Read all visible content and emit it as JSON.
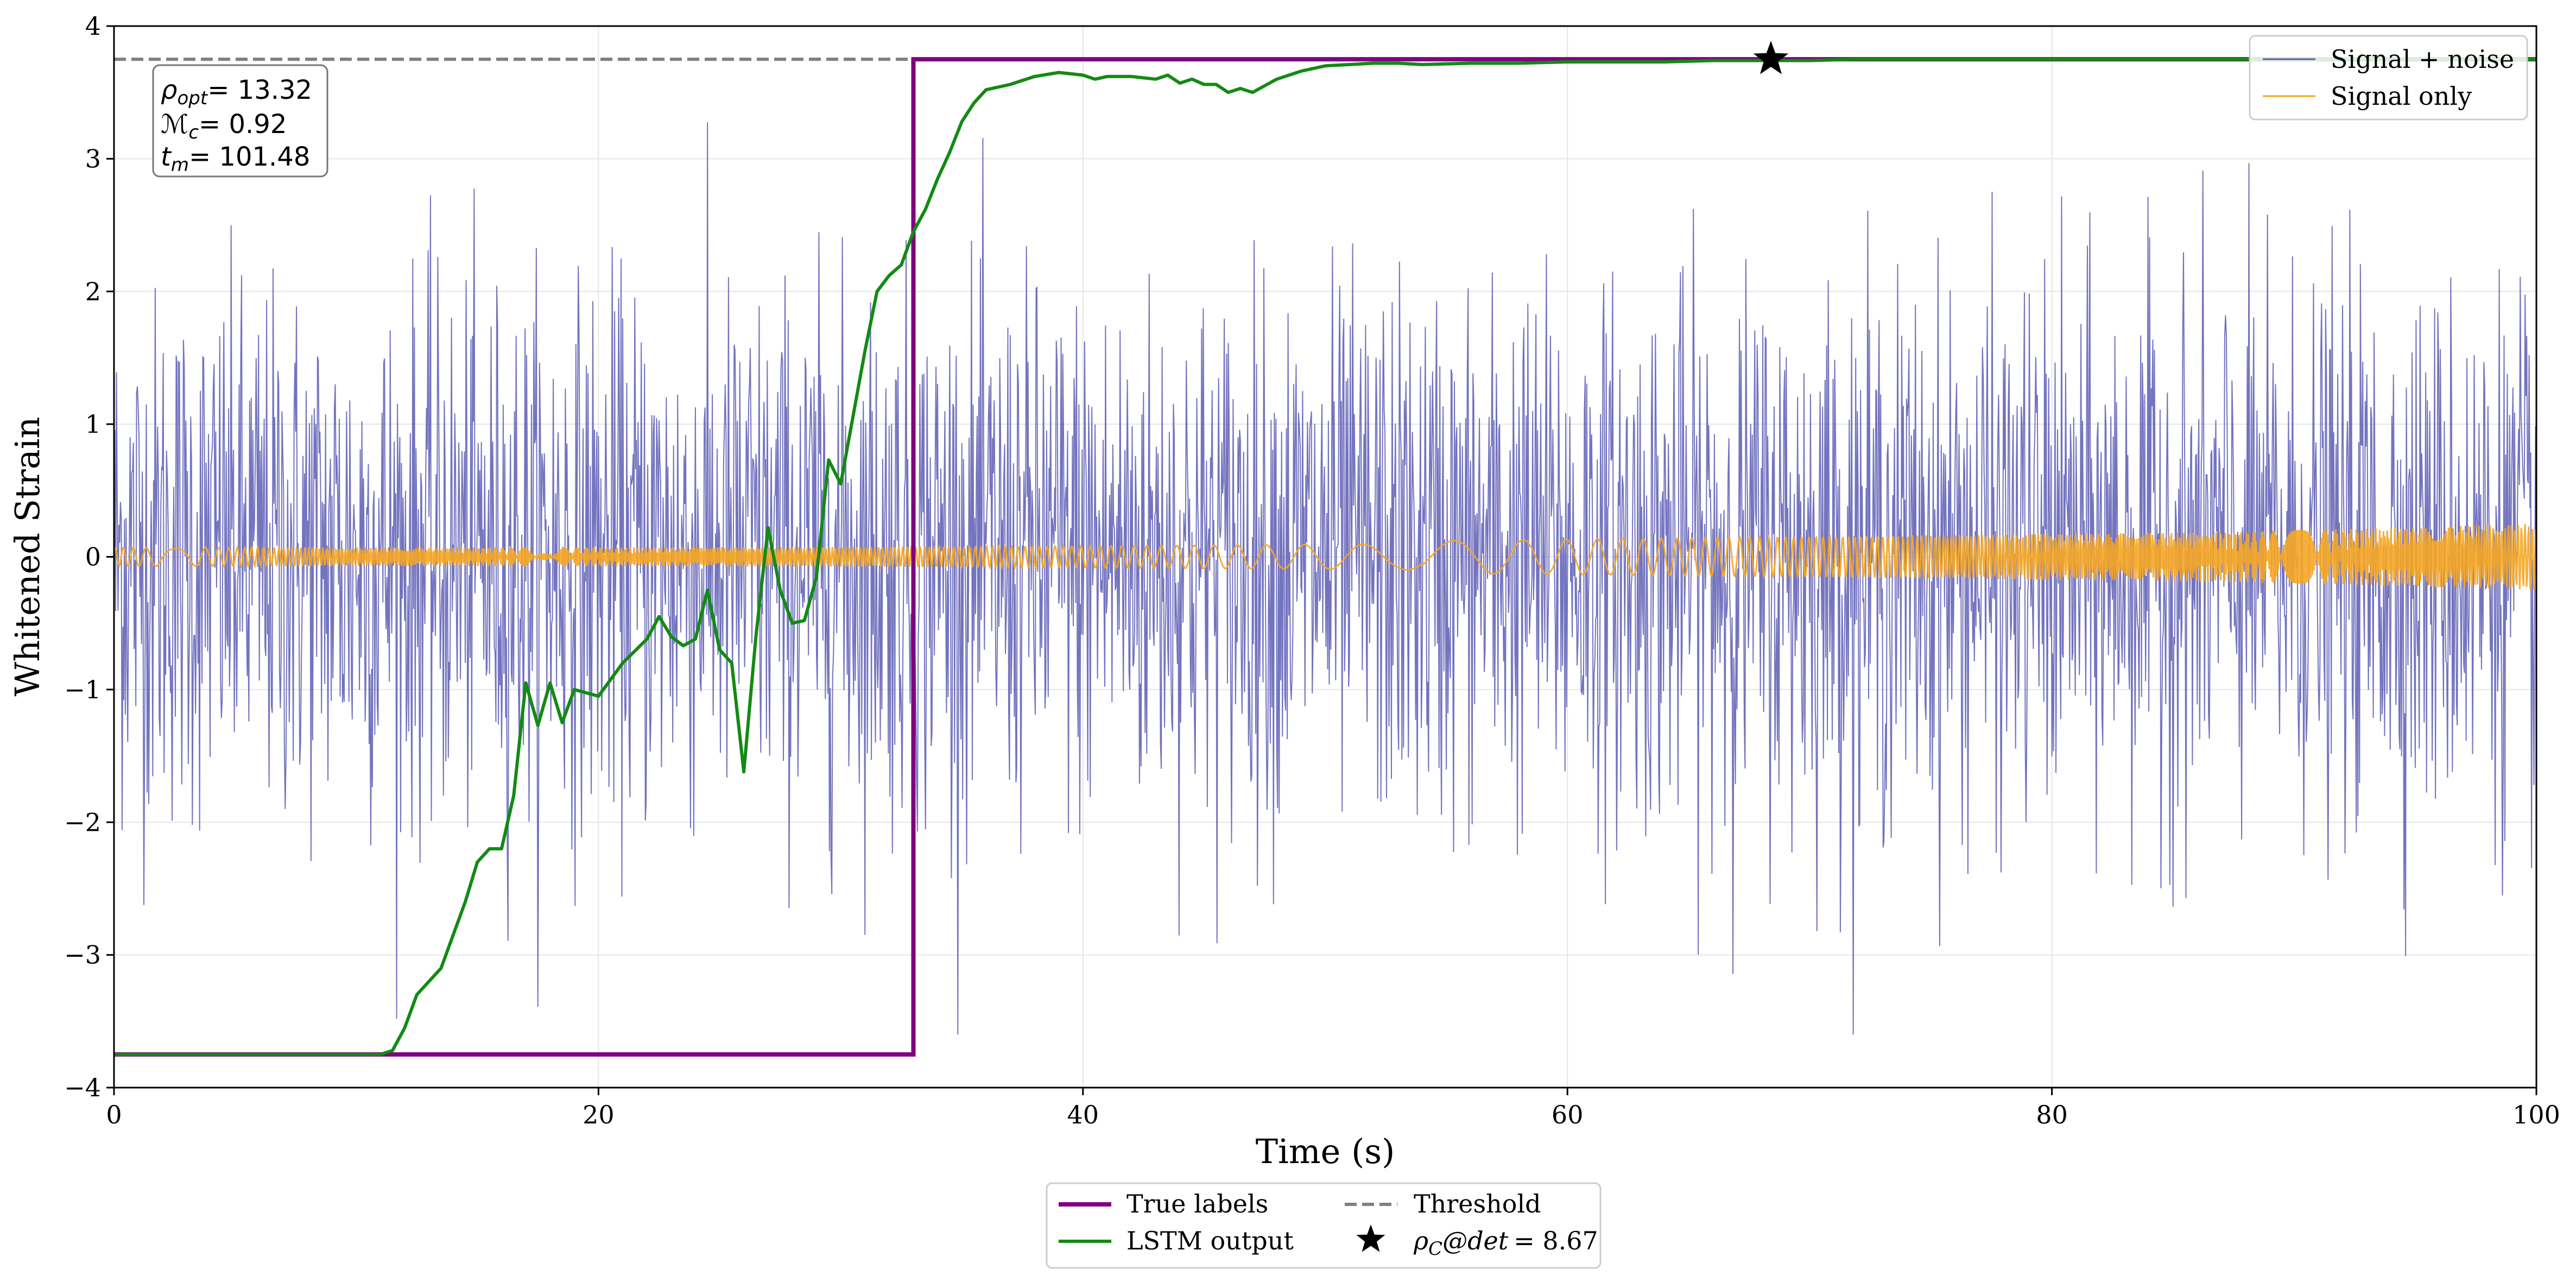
{
  "chart_data": {
    "type": "line",
    "title": "",
    "xlabel": "Time (s)",
    "ylabel": "Whitened Strain",
    "xlim": [
      0,
      100
    ],
    "ylim": [
      -4,
      4
    ],
    "xticks": [
      0,
      20,
      40,
      60,
      80,
      100
    ],
    "yticks": [
      -4,
      -3,
      -2,
      -1,
      0,
      1,
      2,
      3,
      4
    ],
    "xtick_labels": [
      "0",
      "20",
      "40",
      "60",
      "80",
      "100"
    ],
    "ytick_labels": [
      "−4",
      "−3",
      "−2",
      "−1",
      "0",
      "1",
      "2",
      "3",
      "4"
    ],
    "grid": true,
    "colors": {
      "signal_noise": "#5a5ab4",
      "signal_only": "#f5a623",
      "true_labels": "#800080",
      "lstm": "#138a13",
      "threshold": "#808080",
      "marker": "#000000"
    },
    "series": [
      {
        "name": "Signal + noise",
        "kind": "noise",
        "x_range": [
          0,
          100
        ],
        "approx_std": 1.0,
        "approx_extremes": [
          -3.6,
          3.4
        ]
      },
      {
        "name": "Signal only",
        "kind": "chirp",
        "x_range": [
          0,
          100
        ],
        "amplitude_start": 0.07,
        "amplitude_end": 0.25,
        "min_frequency_time": 54
      },
      {
        "name": "True labels",
        "kind": "step",
        "x": [
          0,
          33,
          33,
          100
        ],
        "y": [
          -3.75,
          -3.75,
          3.75,
          3.75
        ]
      },
      {
        "name": "LSTM output",
        "kind": "line",
        "x": [
          0,
          11,
          11.5,
          12,
          12.5,
          13,
          13.5,
          14,
          14.5,
          15,
          15.5,
          16,
          16.5,
          17,
          17.5,
          18,
          18.5,
          19,
          20,
          21,
          22,
          22.5,
          23,
          23.5,
          24,
          24.5,
          25,
          25.5,
          26,
          26.5,
          27,
          27.5,
          28,
          28.5,
          29,
          29.5,
          30,
          30.5,
          31,
          31.5,
          32,
          32.5,
          33,
          33.5,
          34,
          34.5,
          35,
          35.5,
          36,
          37,
          38,
          39,
          40,
          40.5,
          41,
          42,
          43,
          43.5,
          44,
          44.5,
          45,
          45.5,
          46,
          46.5,
          47,
          48,
          49,
          50,
          51,
          52,
          53,
          54,
          56,
          58,
          60,
          62,
          64,
          66,
          68,
          70,
          72,
          75,
          80,
          85,
          90,
          95,
          100
        ],
        "y": [
          -3.75,
          -3.75,
          -3.72,
          -3.55,
          -3.3,
          -3.2,
          -3.1,
          -2.85,
          -2.6,
          -2.3,
          -2.2,
          -2.2,
          -1.8,
          -0.95,
          -1.27,
          -0.95,
          -1.25,
          -1.0,
          -1.05,
          -0.8,
          -0.62,
          -0.45,
          -0.6,
          -0.67,
          -0.62,
          -0.25,
          -0.7,
          -0.8,
          -1.62,
          -0.6,
          0.22,
          -0.25,
          -0.5,
          -0.48,
          -0.15,
          0.73,
          0.55,
          1.05,
          1.55,
          2.0,
          2.12,
          2.2,
          2.45,
          2.62,
          2.85,
          3.05,
          3.28,
          3.42,
          3.52,
          3.56,
          3.62,
          3.65,
          3.63,
          3.6,
          3.62,
          3.62,
          3.6,
          3.63,
          3.57,
          3.6,
          3.56,
          3.56,
          3.5,
          3.53,
          3.5,
          3.6,
          3.66,
          3.7,
          3.71,
          3.72,
          3.72,
          3.71,
          3.72,
          3.72,
          3.73,
          3.73,
          3.73,
          3.74,
          3.74,
          3.74,
          3.75,
          3.75,
          3.75,
          3.75,
          3.75,
          3.75,
          3.75
        ]
      },
      {
        "name": "Threshold",
        "kind": "hline",
        "y": 3.75
      },
      {
        "name": "detection",
        "kind": "marker",
        "x": 68.4,
        "y": 3.75
      }
    ],
    "legend_upper": {
      "placement": "upper-right",
      "entries": [
        "Signal + noise",
        "Signal only"
      ]
    },
    "legend_lower": {
      "placement": "below-axes",
      "entries": [
        "True labels",
        "Threshold",
        "LSTM output",
        "ρC@det = 8.67"
      ]
    },
    "annotation": {
      "placement": "upper-left",
      "lines": [
        {
          "symbol": "ρ",
          "sub": "opt",
          "value": "= 13.32"
        },
        {
          "symbol": "ℳ",
          "sub": "c",
          "value": "= 0.92"
        },
        {
          "symbol": "t",
          "sub": "m",
          "value": "= 101.48"
        }
      ]
    },
    "detection_label": {
      "symbol": "ρ",
      "sub": "C",
      "suffix": "@det",
      "value": "= 8.67"
    }
  }
}
